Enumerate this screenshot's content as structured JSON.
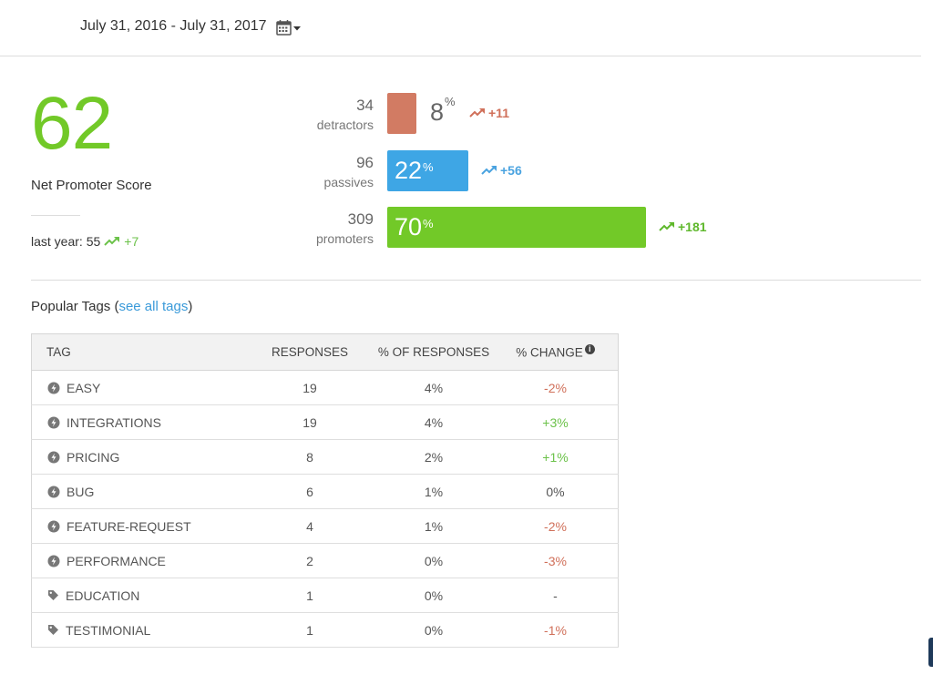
{
  "header": {
    "date_range": "July 31, 2016 - July 31, 2017",
    "calendar_icon": "calendar-icon",
    "dropdown_icon": "caret-down-icon"
  },
  "nps": {
    "score": "62",
    "label": "Net Promoter Score",
    "last_year_text": "last year: 55",
    "last_year_delta": "+7",
    "score_color": "#72c928"
  },
  "distribution": [
    {
      "key": "detractors",
      "count": "34",
      "label": "detractors",
      "percent": "8",
      "percent_value": 8,
      "suffix": "%",
      "delta": "+11",
      "color": "#d27b63",
      "delta_color": "#d0705a"
    },
    {
      "key": "passives",
      "count": "96",
      "label": "passives",
      "percent": "22",
      "percent_value": 22,
      "suffix": "%",
      "delta": "+56",
      "color": "#3ea6e5",
      "delta_color": "#4aa3e0"
    },
    {
      "key": "promoters",
      "count": "309",
      "label": "promoters",
      "percent": "70",
      "percent_value": 70,
      "suffix": "%",
      "delta": "+181",
      "color": "#72c928",
      "delta_color": "#5fb82c"
    }
  ],
  "tags": {
    "title_prefix": "Popular Tags (",
    "link": "see all tags",
    "title_suffix": ")",
    "columns": [
      "TAG",
      "RESPONSES",
      "% OF RESPONSES",
      "% CHANGE"
    ],
    "rows": [
      {
        "icon": "lightning-icon",
        "tag": "EASY",
        "responses": "19",
        "pct": "4%",
        "change": "-2%",
        "trend": "neg"
      },
      {
        "icon": "lightning-icon",
        "tag": "INTEGRATIONS",
        "responses": "19",
        "pct": "4%",
        "change": "+3%",
        "trend": "pos"
      },
      {
        "icon": "lightning-icon",
        "tag": "PRICING",
        "responses": "8",
        "pct": "2%",
        "change": "+1%",
        "trend": "pos"
      },
      {
        "icon": "lightning-icon",
        "tag": "BUG",
        "responses": "6",
        "pct": "1%",
        "change": "0%",
        "trend": "neu"
      },
      {
        "icon": "lightning-icon",
        "tag": "FEATURE-REQUEST",
        "responses": "4",
        "pct": "1%",
        "change": "-2%",
        "trend": "neg"
      },
      {
        "icon": "lightning-icon",
        "tag": "PERFORMANCE",
        "responses": "2",
        "pct": "0%",
        "change": "-3%",
        "trend": "neg"
      },
      {
        "icon": "tag-icon",
        "tag": "EDUCATION",
        "responses": "1",
        "pct": "0%",
        "change": "-",
        "trend": "neu"
      },
      {
        "icon": "tag-icon",
        "tag": "TESTIMONIAL",
        "responses": "1",
        "pct": "0%",
        "change": "-1%",
        "trend": "neg"
      }
    ]
  }
}
